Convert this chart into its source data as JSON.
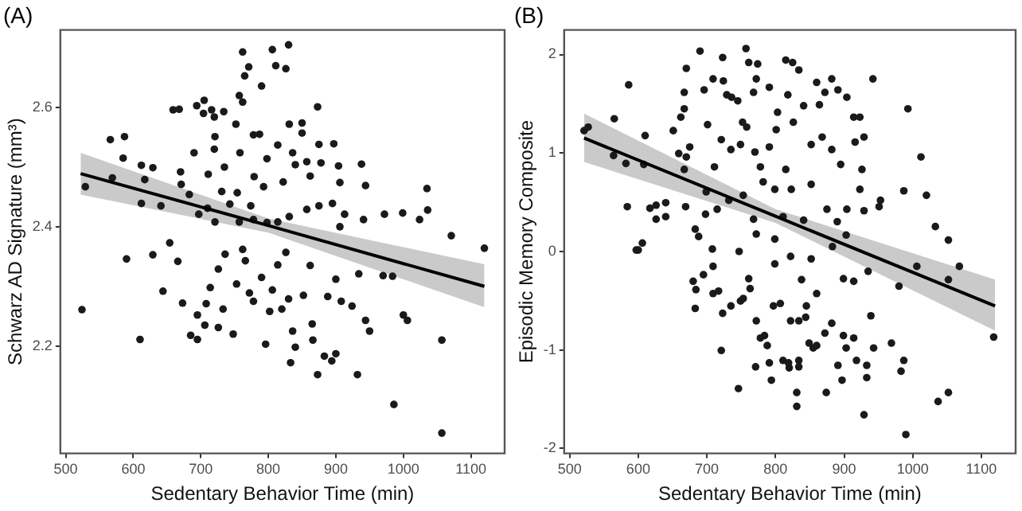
{
  "chart_data": [
    {
      "type": "scatter",
      "title": "(A)",
      "xlabel": "Sedentary Behavior Time (min)",
      "ylabel": "Schwarz AD Signature (mm³)",
      "xlim": [
        492,
        1150
      ],
      "ylim": [
        2.02,
        2.73
      ],
      "xticks": [
        500,
        600,
        700,
        800,
        900,
        1000,
        1100
      ],
      "yticks": [
        2.2,
        2.4,
        2.6
      ],
      "grid": false,
      "legend": false,
      "series": [
        {
          "type": "scatter",
          "marker": "circle",
          "color": "#1a1a1a",
          "x": [
            529,
            566,
            587,
            585,
            612,
            629,
            617,
            569,
            612,
            641,
            659,
            668,
            694,
            705,
            704,
            716,
            720,
            734,
            690,
            720,
            721,
            671,
            670,
            683,
            697,
            711,
            735,
            752,
            757,
            762,
            765,
            771,
            762,
            790,
            806,
            811,
            826,
            830,
            831,
            850,
            873,
            850,
            778,
            787,
            875,
            897,
            758,
            798,
            814,
            836,
            857,
            878,
            904,
            938,
            944,
            906,
            862,
            840,
            822,
            793,
            779,
            754,
            774,
            743,
            731,
            710,
            721,
            757,
            778,
            798,
            814,
            831,
            857,
            875,
            895,
            913,
            941,
            906,
            999,
            1024,
            1035,
            1036,
            1071,
            972,
            654,
            629,
            524,
            590,
            666,
            644,
            673,
            685,
            695,
            706,
            695,
            610,
            714,
            726,
            708,
            733,
            726,
            748,
            736,
            753,
            766,
            772,
            778,
            790,
            796,
            806,
            802,
            820,
            814,
            826,
            830,
            836,
            840,
            833,
            852,
            862,
            865,
            866,
            873,
            883,
            894,
            900,
            888,
            900,
            908,
            924,
            932,
            944,
            950,
            970,
            984,
            1000,
            1006,
            986,
            1057,
            1057,
            1120,
            934,
            762
          ],
          "values": [
            2.467,
            2.546,
            2.551,
            2.515,
            2.503,
            2.499,
            2.479,
            2.482,
            2.439,
            2.435,
            2.596,
            2.597,
            2.603,
            2.612,
            2.59,
            2.596,
            2.584,
            2.593,
            2.524,
            2.53,
            2.551,
            2.471,
            2.492,
            2.454,
            2.421,
            2.488,
            2.5,
            2.572,
            2.62,
            2.609,
            2.653,
            2.668,
            2.693,
            2.636,
            2.697,
            2.67,
            2.665,
            2.705,
            2.572,
            2.574,
            2.601,
            2.557,
            2.554,
            2.555,
            2.538,
            2.539,
            2.524,
            2.514,
            2.537,
            2.524,
            2.509,
            2.507,
            2.502,
            2.505,
            2.469,
            2.474,
            2.485,
            2.504,
            2.475,
            2.467,
            2.484,
            2.457,
            2.435,
            2.438,
            2.459,
            2.431,
            2.408,
            2.408,
            2.412,
            2.407,
            2.408,
            2.417,
            2.429,
            2.435,
            2.439,
            2.421,
            2.412,
            2.4,
            2.423,
            2.412,
            2.464,
            2.428,
            2.385,
            2.421,
            2.373,
            2.353,
            2.261,
            2.346,
            2.342,
            2.292,
            2.272,
            2.218,
            2.252,
            2.235,
            2.211,
            2.211,
            2.298,
            2.329,
            2.271,
            2.262,
            2.231,
            2.22,
            2.354,
            2.304,
            2.343,
            2.289,
            2.275,
            2.315,
            2.203,
            2.294,
            2.258,
            2.262,
            2.336,
            2.357,
            2.279,
            2.225,
            2.198,
            2.172,
            2.285,
            2.335,
            2.237,
            2.21,
            2.152,
            2.183,
            2.175,
            2.187,
            2.283,
            2.312,
            2.275,
            2.267,
            2.152,
            2.243,
            2.225,
            2.318,
            2.317,
            2.252,
            2.243,
            2.102,
            2.21,
            2.054,
            2.364,
            2.321,
            2.362
          ]
        },
        {
          "type": "line",
          "marker": "none",
          "color": "#000000",
          "x": [
            522,
            800,
            1120
          ],
          "values": [
            2.489,
            2.402,
            2.3
          ],
          "lower": [
            2.454,
            2.39,
            2.265
          ],
          "upper": [
            2.524,
            2.414,
            2.337
          ]
        }
      ]
    },
    {
      "type": "scatter",
      "title": "(B)",
      "xlabel": "Sedentary Behavior Time (min)",
      "ylabel": "Episodic Memory Composite",
      "xlim": [
        492,
        1150
      ],
      "ylim": [
        -2.05,
        2.25
      ],
      "xticks": [
        500,
        600,
        700,
        800,
        900,
        1000,
        1100
      ],
      "yticks": [
        -2,
        -1,
        0,
        1,
        2
      ],
      "grid": false,
      "legend": false,
      "series": [
        {
          "type": "scatter",
          "marker": "circle",
          "color": "#1a1a1a",
          "x": [
            521,
            527,
            565,
            564,
            582,
            586,
            610,
            608,
            584,
            597,
            606,
            617,
            626,
            640,
            626,
            640,
            651,
            659,
            670,
            662,
            667,
            670,
            667,
            675,
            669,
            667,
            690,
            696,
            701,
            709,
            723,
            724,
            729,
            736,
            745,
            757,
            761,
            774,
            772,
            768,
            752,
            735,
            721,
            711,
            699,
            698,
            715,
            732,
            749,
            758,
            770,
            778,
            753,
            768,
            782,
            791,
            801,
            803,
            791,
            815,
            825,
            834,
            818,
            826,
            815,
            823,
            799,
            811,
            772,
            799,
            841,
            852,
            868,
            860,
            864,
            872,
            882,
            891,
            904,
            914,
            923,
            916,
            929,
            942,
            926,
            923,
            895,
            882,
            852,
            875,
            841,
            904,
            929,
            951,
            953,
            987,
            993,
            1012,
            1020,
            1033,
            1052,
            903,
            890,
            688,
            708,
            683,
            600,
            680,
            684,
            683,
            695,
            709,
            709,
            717,
            721,
            723,
            735,
            747,
            753,
            761,
            763,
            749,
            772,
            778,
            784,
            746,
            771,
            791,
            794,
            788,
            797,
            807,
            811,
            819,
            820,
            831,
            831,
            834,
            834,
            822,
            834,
            844,
            845,
            849,
            855,
            860,
            872,
            874,
            882,
            891,
            897,
            899,
            903,
            914,
            918,
            929,
            933,
            933,
            939,
            943,
            935,
            969,
            983,
            987,
            990,
            980,
            1037,
            1052,
            1052,
            1068,
            1118,
            1006,
            799,
            822,
            852,
            883,
            899,
            914,
            838,
            860
          ],
          "values": [
            1.227,
            1.263,
            1.348,
            0.975,
            0.894,
            1.692,
            1.177,
            0.884,
            0.455,
            0.015,
            0.086,
            0.439,
            0.47,
            0.495,
            0.328,
            0.354,
            1.227,
            0.995,
            0.96,
            1.364,
            1.616,
            1.859,
            1.449,
            1.061,
            0.455,
            0.833,
            2.035,
            1.641,
            1.288,
            1.753,
            1.97,
            1.732,
            1.591,
            1.566,
            1.53,
            2.061,
            1.919,
            1.904,
            1.753,
            1.616,
            1.313,
            1.035,
            1.136,
            0.859,
            0.606,
            0.379,
            0.429,
            0.52,
            1.086,
            1.263,
            1.01,
            0.859,
            0.571,
            0.328,
            0.707,
            1.061,
            1.237,
            1.414,
            1.667,
            1.944,
            1.919,
            1.843,
            1.591,
            1.313,
            0.833,
            0.631,
            0.631,
            0.354,
            0.177,
            0.126,
            1.48,
            1.086,
            1.162,
            1.717,
            1.49,
            1.616,
            1.753,
            1.641,
            1.566,
            1.364,
            1.364,
            1.111,
            1.162,
            1.753,
            0.833,
            0.631,
            0.884,
            1.035,
            0.682,
            0.429,
            0.318,
            0.429,
            0.414,
            0.455,
            0.52,
            0.616,
            1.449,
            0.96,
            0.571,
            0.253,
            0.116,
            0.167,
            0.303,
            0.152,
            0.025,
            0.227,
            0.015,
            -0.302,
            -0.387,
            -0.578,
            -0.236,
            -0.151,
            -0.427,
            -0.402,
            -1.005,
            -0.628,
            -0.553,
            0,
            -0.477,
            -0.276,
            -0.377,
            -0.503,
            -0.704,
            -0.879,
            -0.854,
            -1.392,
            -1.171,
            -1.131,
            -1.307,
            -0.955,
            -0.553,
            -0.528,
            -1.106,
            -1.131,
            -1.181,
            -1.432,
            -1.573,
            -1.106,
            -1.171,
            -0.704,
            -0.704,
            -0.668,
            -0.553,
            -0.93,
            -0.98,
            -0.955,
            -0.829,
            -1.432,
            -0.729,
            -1.156,
            -1.307,
            -0.854,
            -0.98,
            -0.879,
            -1.106,
            -1.658,
            -1.281,
            -1.156,
            -0.653,
            -0.98,
            -0.201,
            -0.93,
            -1.216,
            -1.106,
            -1.859,
            -0.352,
            -1.523,
            -1.432,
            -0.286,
            -0.151,
            -0.869,
            -0.151,
            -0.126,
            -0.05,
            -0.075,
            0.05,
            -0.276,
            -0.302,
            -0.286,
            -0.427
          ]
        },
        {
          "type": "line",
          "marker": "none",
          "color": "#000000",
          "x": [
            521,
            800,
            1120
          ],
          "values": [
            1.152,
            0.358,
            -0.553
          ],
          "lower": [
            0.91,
            0.29,
            -0.804
          ],
          "upper": [
            1.4,
            0.43,
            -0.286
          ]
        }
      ]
    }
  ]
}
